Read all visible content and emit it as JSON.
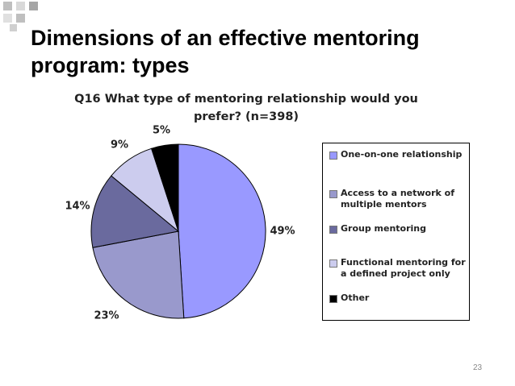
{
  "slide": {
    "title_line1": "Dimensions of an effective mentoring",
    "title_line2": "program: types",
    "page_number": "23"
  },
  "chart_data": {
    "type": "pie",
    "title_line1": "Q16 What type of mentoring relationship would you",
    "title_line2": "prefer? (n=398)",
    "categories": [
      "One-on-one relationship",
      "Access to a network of multiple mentors",
      "Group mentoring",
      "Functional mentoring for a defined project only",
      "Other"
    ],
    "values": [
      49,
      23,
      14,
      9,
      5
    ],
    "data_labels": [
      "49%",
      "23%",
      "14%",
      "9%",
      "5%"
    ],
    "colors": [
      "#9999ff",
      "#9999cc",
      "#6a6a9e",
      "#ccccee",
      "#000000"
    ],
    "legend_placement": "right",
    "legend_lines": [
      [
        "One-on-one relationship"
      ],
      [
        "Access to a network of",
        "multiple mentors"
      ],
      [
        "Group mentoring"
      ],
      [
        "Functional mentoring for",
        "a defined project only"
      ],
      [
        "Other"
      ]
    ]
  }
}
